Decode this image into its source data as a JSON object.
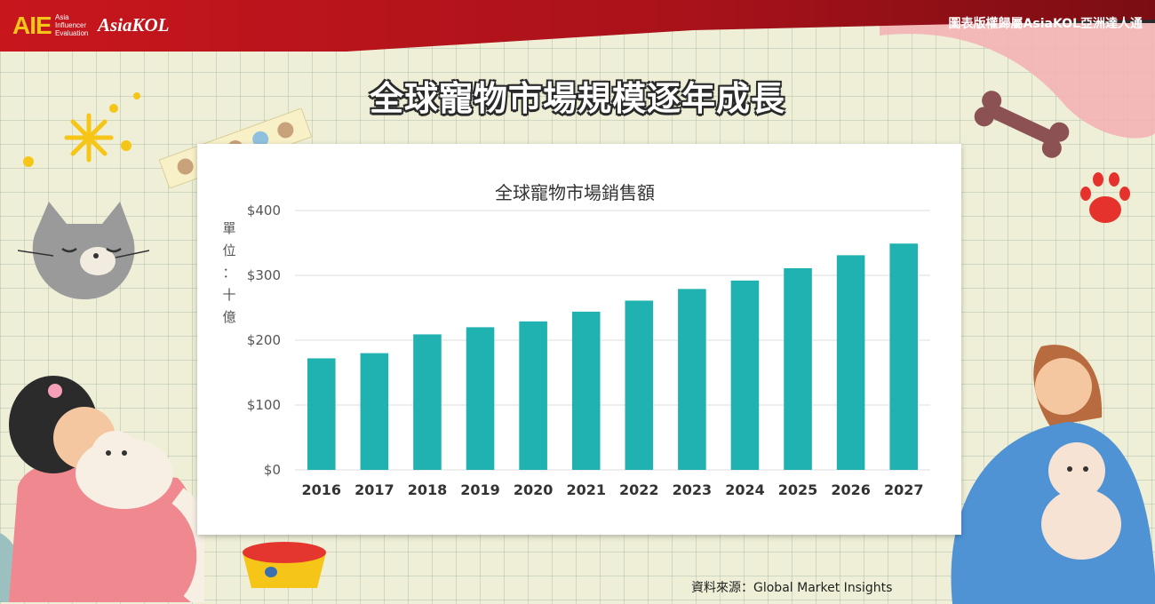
{
  "header": {
    "logo_text": "AIE",
    "logo_sub": [
      "Asia",
      "Influencer",
      "Evaluation"
    ],
    "brand": "AsiaKOL",
    "copyright": "圖表版權歸屬AsiaKOL亞洲達人通"
  },
  "page_title": "全球寵物市場規模逐年成長",
  "source": "資料來源：Global Market Insights",
  "colors": {
    "bar": "#20b2b0",
    "brand_red": "#c8161d",
    "background": "#eeefd6"
  },
  "chart_data": {
    "type": "bar",
    "title": "全球寵物市場銷售額",
    "ylabel": "單位：十億",
    "categories": [
      "2016",
      "2017",
      "2018",
      "2019",
      "2020",
      "2021",
      "2022",
      "2023",
      "2024",
      "2025",
      "2026",
      "2027"
    ],
    "values": [
      172,
      180,
      209,
      220,
      229,
      244,
      261,
      279,
      292,
      311,
      331,
      349
    ],
    "ylim": [
      0,
      400
    ],
    "yticks": [
      0,
      100,
      200,
      300,
      400
    ],
    "ytick_labels": [
      "$0",
      "$100",
      "$200",
      "$300",
      "$400"
    ],
    "grid": true,
    "legend": "none"
  }
}
